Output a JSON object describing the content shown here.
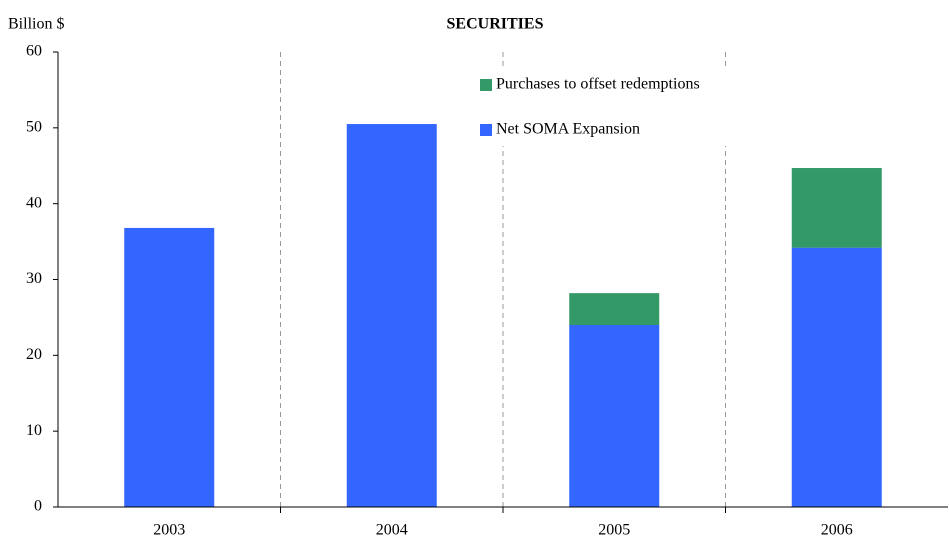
{
  "chart_data": {
    "type": "stacked_bar",
    "title": "SECURITIES",
    "y_axis_label": "Billion $",
    "categories": [
      "2003",
      "2004",
      "2005",
      "2006"
    ],
    "series": [
      {
        "name": "Net SOMA Expansion",
        "color": "#3366ff",
        "values": [
          36.8,
          50.5,
          24,
          34.2
        ]
      },
      {
        "name": "Purchases to offset redemptions",
        "color": "#339966",
        "values": [
          0,
          0,
          4.2,
          10.5
        ]
      }
    ],
    "ylim": [
      0,
      60
    ],
    "yticks": [
      0,
      10,
      20,
      30,
      40,
      50,
      60
    ],
    "grid": false,
    "legend": "top-right"
  }
}
